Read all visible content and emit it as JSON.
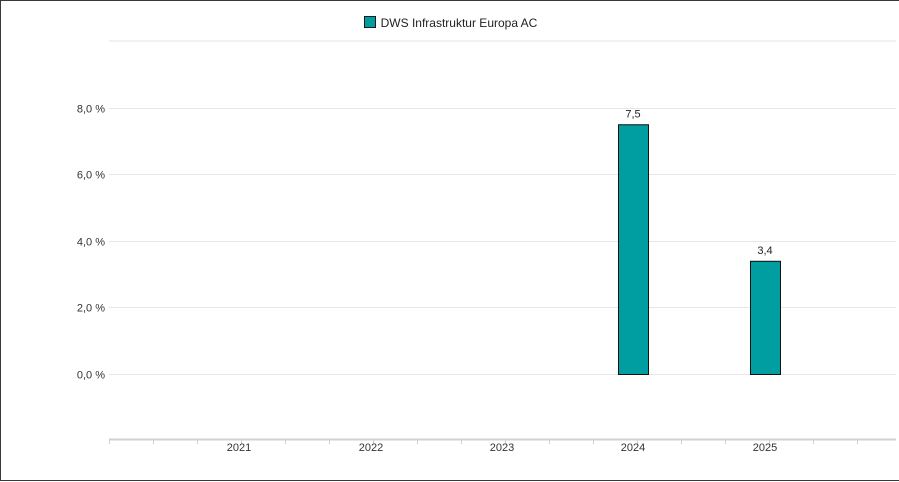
{
  "chart_data": {
    "type": "bar",
    "categories": [
      "2021",
      "2022",
      "2023",
      "2024",
      "2025"
    ],
    "series": [
      {
        "name": "DWS Infrastruktur Europa AC",
        "values": [
          null,
          null,
          null,
          7.5,
          3.4
        ],
        "color": "#009ea1"
      }
    ],
    "value_labels": [
      "",
      "",
      "",
      "7,5",
      "3,4"
    ],
    "y_ticks": [
      0,
      2,
      4,
      6,
      8
    ],
    "y_tick_labels": [
      "0,0 %",
      "2,0 %",
      "4,0 %",
      "6,0 %",
      "8,0 %"
    ],
    "ylim": [
      -2,
      10
    ],
    "grid": true,
    "legend_position": "top-center",
    "title": "",
    "xlabel": "",
    "ylabel": ""
  },
  "colors": {
    "bar": "#009ea1",
    "grid": "#e6e6e6",
    "axis": "#d0d0d0"
  }
}
